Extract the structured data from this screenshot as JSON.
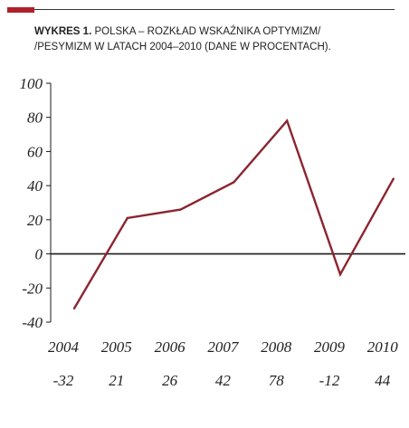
{
  "colors": {
    "accent": "#b0202a",
    "line": "#8b2530",
    "axis": "#1a1a1a",
    "text": "#222222"
  },
  "title_prefix": "WYKRES 1.",
  "title_line1": " POLSKA – ROZKŁAD WSKAŹNIKA OPTYMIZM/",
  "title_line2": "/PESYMIZM W LATACH 2004–2010 (DANE W PROCENTACH).",
  "chart_data": {
    "type": "line",
    "title": "WYKRES 1. POLSKA – ROZKŁAD WSKAŹNIKA OPTYMIZM/ /PESYMIZM W LATACH 2004–2010 (DANE W PROCENTACH).",
    "xlabel": "",
    "ylabel": "",
    "categories": [
      "2004",
      "2005",
      "2006",
      "2007",
      "2008",
      "2009",
      "2010"
    ],
    "values": [
      -32,
      21,
      26,
      42,
      78,
      -12,
      44
    ],
    "value_labels": [
      "-32",
      "21",
      "26",
      "42",
      "78",
      "-12",
      "44"
    ],
    "ylim": [
      -40,
      100
    ],
    "yticks": [
      100,
      80,
      60,
      40,
      20,
      0,
      -20,
      -40
    ],
    "ytick_labels": [
      "100",
      "80",
      "60",
      "40",
      "20",
      "0",
      "-20",
      "-40"
    ],
    "grid": false,
    "legend": "none"
  }
}
